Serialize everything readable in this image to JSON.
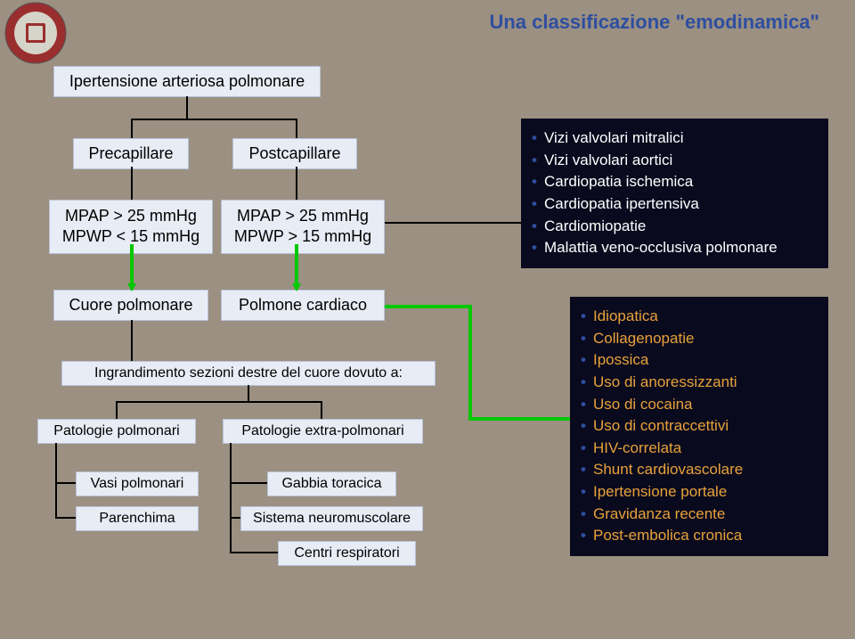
{
  "colors": {
    "bg": "#9b9081",
    "accent": "#2f4ea0",
    "box_bg": "#e8ecf5",
    "box_border": "#b8c2d8",
    "dark_bg": "#0a0a1e",
    "green": "#00c800",
    "orange": "#e8a23a",
    "seal_outer": "#9a2e2e",
    "seal_inner": "#d4d4c8"
  },
  "title": "Una classificazione \"emodinamica\"",
  "boxes": {
    "root": "Ipertensione arteriosa polmonare",
    "precap": "Precapillare",
    "postcap": "Postcapillare",
    "precap_vals_l1": "MPAP > 25 mmHg",
    "precap_vals_l2": "MPWP < 15 mmHg",
    "postcap_vals_l1": "MPAP > 25 mmHg",
    "postcap_vals_l2": "MPWP > 15 mmHg",
    "cuore": "Cuore polmonare",
    "polmone": "Polmone cardiaco",
    "ingrandimento": "Ingrandimento sezioni destre del cuore dovuto a:",
    "patol_polm": "Patologie polmonari",
    "patol_extra": "Patologie extra-polmonari",
    "vasi": "Vasi polmonari",
    "parenchima": "Parenchima",
    "gabbia": "Gabbia toracica",
    "sistema": "Sistema neuromuscolare",
    "centri": "Centri respiratori"
  },
  "panel1": [
    "Vizi valvolari mitralici",
    "Vizi valvolari aortici",
    "Cardiopatia ischemica",
    "Cardiopatia ipertensiva",
    "Cardiomiopatie",
    "Malattia veno-occlusiva polmonare"
  ],
  "panel2": [
    "Idiopatica",
    "Collagenopatie",
    "Ipossica",
    "Uso di anoressizzanti",
    "Uso di cocaina",
    "Uso di contraccettivi",
    "HIV-correlata",
    "Shunt cardiovascolare",
    "Ipertensione portale",
    "Gravidanza recente",
    "Post-embolica cronica"
  ]
}
